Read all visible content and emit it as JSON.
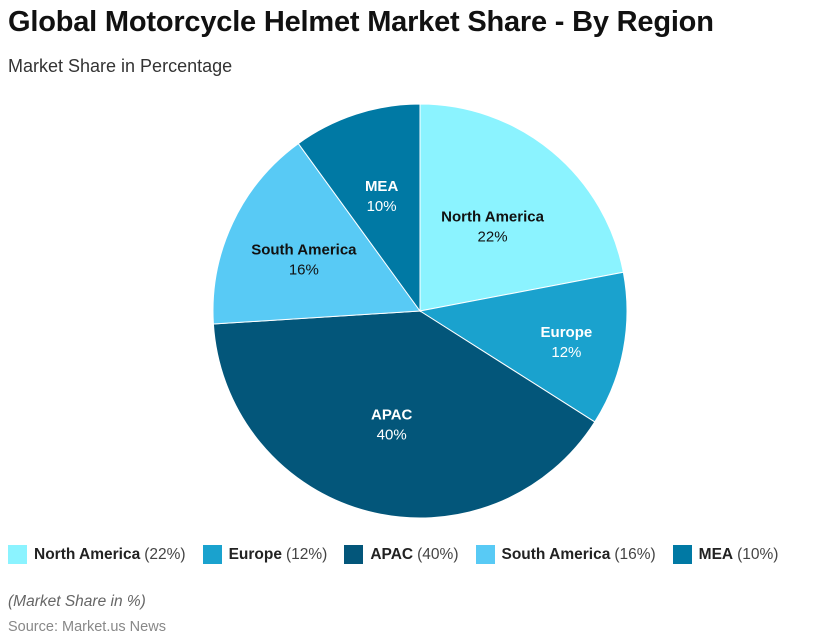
{
  "header": {
    "title": "Global Motorcycle Helmet Market Share - By Region",
    "subtitle": "Market Share in Percentage"
  },
  "footer": {
    "note": "(Market Share in %)",
    "source": "Source: Market.us News"
  },
  "legend": [
    {
      "name": "North America",
      "pct": "(22%)",
      "color": "#8BF3FF"
    },
    {
      "name": "Europe",
      "pct": "(12%)",
      "color": "#1AA2CE"
    },
    {
      "name": "APAC",
      "pct": "(40%)",
      "color": "#03567A"
    },
    {
      "name": "South America",
      "pct": "(16%)",
      "color": "#58CAF5"
    },
    {
      "name": "MEA",
      "pct": "(10%)",
      "color": "#0079A4"
    }
  ],
  "chart_data": {
    "type": "pie",
    "title": "Global Motorcycle Helmet Market Share - By Region",
    "subtitle": "Market Share in Percentage",
    "categories": [
      "North America",
      "Europe",
      "APAC",
      "South America",
      "MEA"
    ],
    "values": [
      22,
      12,
      40,
      16,
      10
    ],
    "unit": "%",
    "colors": [
      "#8BF3FF",
      "#1AA2CE",
      "#03567A",
      "#58CAF5",
      "#0079A4"
    ],
    "label_colors": [
      "#111111",
      "#ffffff",
      "#ffffff",
      "#111111",
      "#ffffff"
    ],
    "start_angle": "12 o'clock, clockwise",
    "legend_position": "bottom",
    "note": "(Market Share in %)",
    "source": "Source: Market.us News"
  }
}
